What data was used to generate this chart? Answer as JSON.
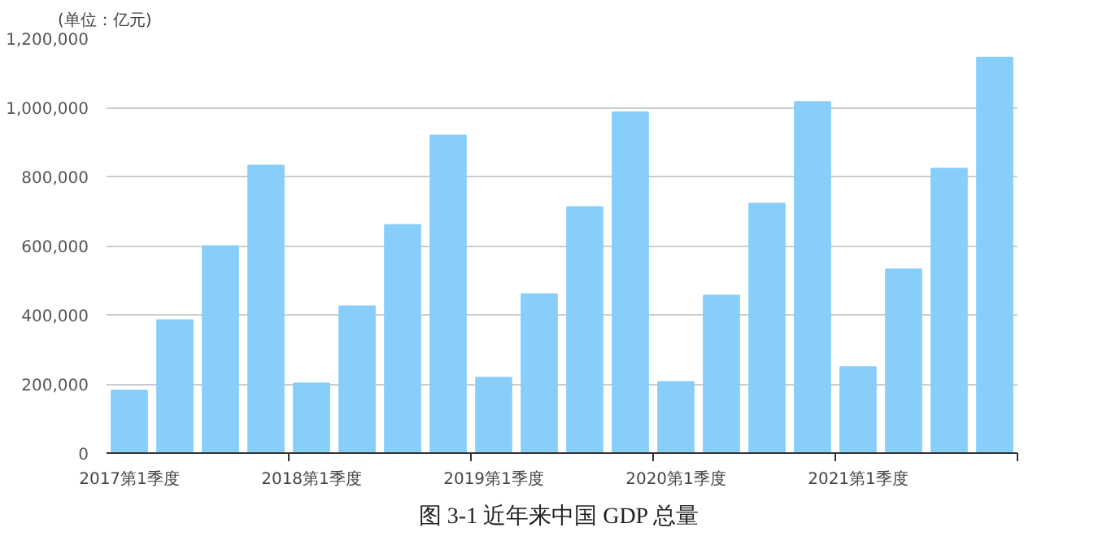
{
  "chart_data": {
    "type": "bar",
    "title": "图 3-1  近年来中国 GDP 总量",
    "ylabel": "(单位：亿元)",
    "categories": [
      "2017第1季度",
      null,
      null,
      null,
      "2018第1季度",
      null,
      null,
      null,
      "2019第1季度",
      null,
      null,
      null,
      "2020第1季度",
      null,
      null,
      null,
      "2021第1季度",
      null,
      null,
      null
    ],
    "values": [
      181000,
      385000,
      599000,
      832000,
      202000,
      425000,
      660000,
      919000,
      218000,
      460000,
      712000,
      986000,
      206000,
      456000,
      722000,
      1016000,
      249000,
      532000,
      823000,
      1144000
    ],
    "color": "#87cefa",
    "ylim": [
      0,
      1200000
    ],
    "yticks": [
      0,
      {
        "value": 200000,
        "label": "200,000"
      },
      {
        "value": 400000,
        "label": "400,000"
      },
      {
        "value": 600000,
        "label": "600,000"
      },
      {
        "value": 800000,
        "label": "800,000"
      },
      {
        "value": 1000000,
        "label": "1,000,000"
      },
      {
        "value": 1200000,
        "label": "1,200,000"
      }
    ],
    "grid": "y"
  }
}
